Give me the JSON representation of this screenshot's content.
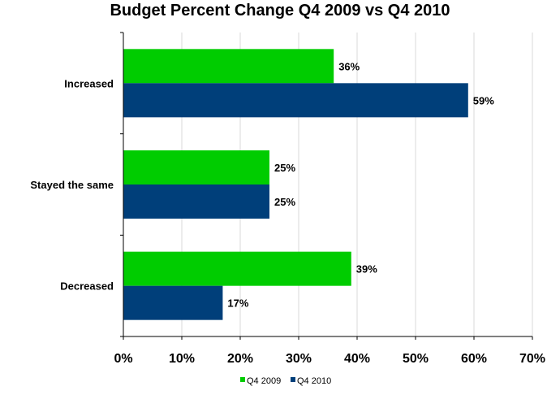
{
  "chart_data": {
    "type": "bar",
    "orientation": "horizontal",
    "title": "Budget Percent Change Q4 2009 vs Q4 2010",
    "categories": [
      "Increased",
      "Stayed the same",
      "Decreased"
    ],
    "series": [
      {
        "name": "Q4 2009",
        "values": [
          36,
          25,
          39
        ],
        "labels": [
          "36%",
          "25%",
          "39%"
        ],
        "color": "#00CC00"
      },
      {
        "name": "Q4 2010",
        "values": [
          59,
          25,
          17
        ],
        "labels": [
          "59%",
          "25%",
          "17%"
        ],
        "color": "#003F7A"
      }
    ],
    "xlim": [
      0,
      70
    ],
    "x_ticks": [
      0,
      10,
      20,
      30,
      40,
      50,
      60,
      70
    ],
    "x_tick_labels": [
      "0%",
      "10%",
      "20%",
      "30%",
      "40%",
      "50%",
      "60%",
      "70%"
    ],
    "grid": "vertical",
    "legend": "bottom"
  }
}
